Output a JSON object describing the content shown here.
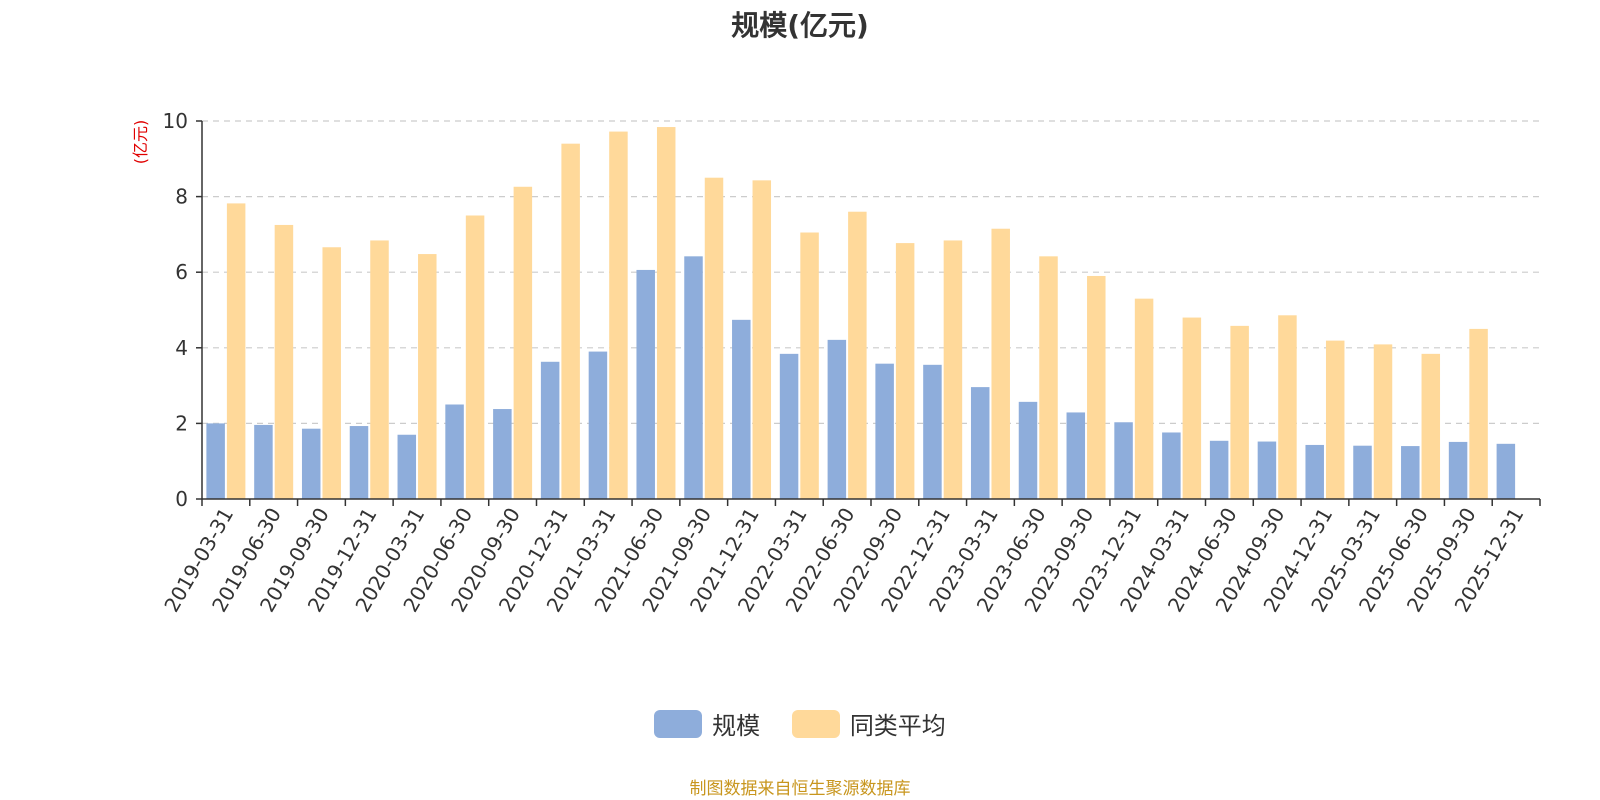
{
  "chart_data": {
    "type": "bar",
    "title": "规模(亿元)",
    "ylabel": "(亿元)",
    "xlabel": "",
    "ylim": [
      0,
      10
    ],
    "yticks": [
      0,
      2,
      4,
      6,
      8,
      10
    ],
    "grid": true,
    "legend_position": "bottom",
    "categories": [
      "2019-03-31",
      "2019-06-30",
      "2019-09-30",
      "2019-12-31",
      "2020-03-31",
      "2020-06-30",
      "2020-09-30",
      "2020-12-31",
      "2021-03-31",
      "2021-06-30",
      "2021-09-30",
      "2021-12-31",
      "2022-03-31",
      "2022-06-30",
      "2022-09-30",
      "2022-12-31",
      "2023-03-31",
      "2023-06-30",
      "2023-09-30",
      "2023-12-31",
      "2024-03-31",
      "2024-06-30",
      "2024-09-30",
      "2024-12-31",
      "2025-03-31",
      "2025-06-30",
      "2025-09-30",
      "2025-12-31"
    ],
    "series": [
      {
        "name": "规模",
        "color": "#8EADDB",
        "values": [
          2.0,
          1.96,
          1.86,
          1.93,
          1.7,
          2.5,
          2.38,
          3.63,
          3.9,
          6.06,
          6.42,
          4.74,
          3.84,
          4.21,
          3.58,
          3.55,
          2.96,
          2.57,
          2.29,
          2.03,
          1.76,
          1.54,
          1.52,
          1.43,
          1.41,
          1.4,
          1.51,
          1.46
        ]
      },
      {
        "name": "同类平均",
        "color": "#FFD99A",
        "values": [
          7.82,
          7.25,
          6.66,
          6.84,
          6.48,
          7.5,
          8.26,
          9.4,
          9.72,
          9.84,
          8.5,
          8.43,
          7.05,
          7.6,
          6.77,
          6.84,
          7.15,
          6.42,
          5.9,
          5.3,
          4.8,
          4.58,
          4.86,
          4.19,
          4.09,
          3.84,
          4.5,
          null
        ]
      }
    ]
  },
  "source_text": "制图数据来自恒生聚源数据库",
  "colors": {
    "axis_label": "#e00000",
    "source": "#c8961e",
    "grid": "#cccccc"
  }
}
